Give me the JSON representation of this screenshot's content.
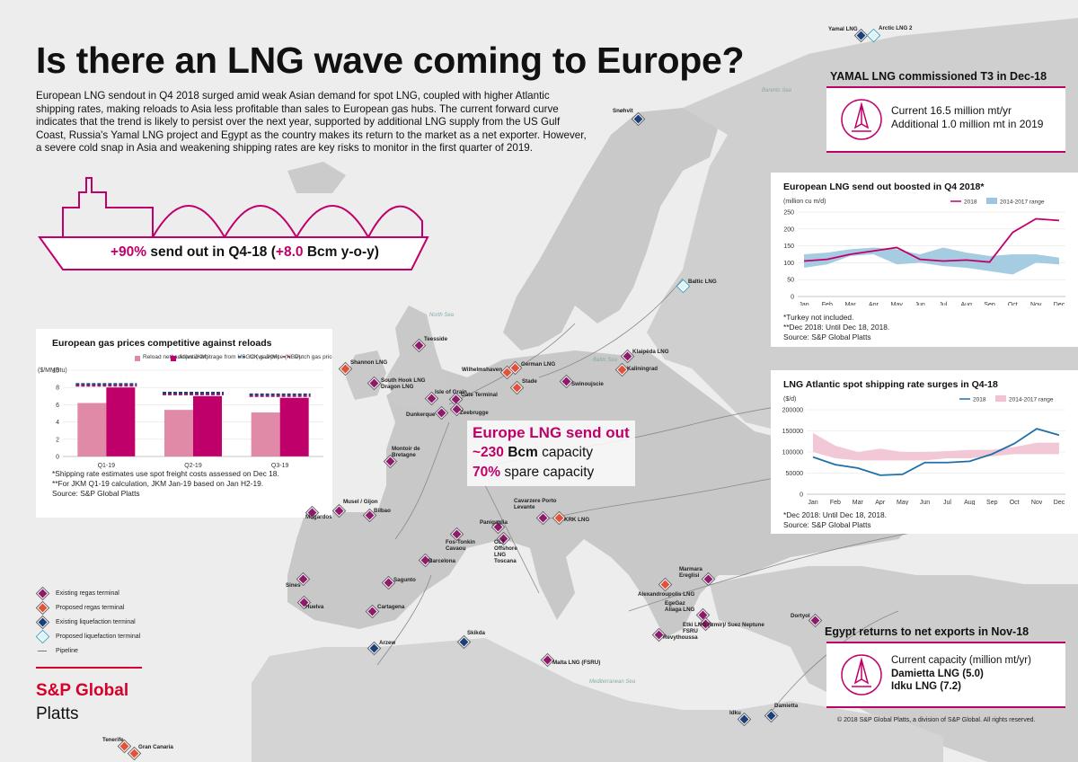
{
  "title": "Is there an LNG wave coming to Europe?",
  "intro": "European LNG sendout in Q4 2018 surged amid weak Asian demand for spot LNG, coupled with higher Atlantic shipping rates, making reloads to Asia less profitable than sales to European gas hubs. The current forward curve indicates that the trend is likely to persist over the next year, supported by additional LNG supply from the US Gulf Coast, Russia's Yamal LNG project and Egypt as the country makes its return to the market as a net exporter. However, a severe cold snap in Asia and weakening shipping rates are key risks to monitor in the first quarter of 2019.",
  "ship": {
    "pct": "+90%",
    "mid": " send out in Q4-18 (",
    "bcm": "+8.0",
    "end": " Bcm y-o-y)"
  },
  "center": {
    "title": "Europe LNG send out",
    "cap_value": "~230",
    "cap_unit": " Bcm",
    "cap_text": " capacity",
    "spare_value": "70%",
    "spare_text": " spare capacity"
  },
  "yamal": {
    "title": "YAMAL LNG commissioned T3 in Dec-18",
    "line1": "Current 16.5 million mt/yr",
    "line2": "Additional 1.0 million mt in 2019"
  },
  "egypt": {
    "title": "Egypt returns to net exports in Nov-18",
    "line1": "Current capacity (million mt/yr)",
    "line2": "Damietta LNG (5.0)",
    "line3": "Idku LNG (7.2)"
  },
  "chart1_notes": {
    "n1": "*Shipping rate estimates use spot freight costs assessed on Dec 18.",
    "n2": "**For JKM Q1-19 calculation, JKM Jan-19 based on Jan H2-19.",
    "n3": "Source: S&P Global Platts"
  },
  "chart2_notes": {
    "n1": "*Turkey not included.",
    "n2": "**Dec 2018: Until Dec 18, 2018.",
    "n3": "Source: S&P Global Platts"
  },
  "chart3_notes": {
    "n1": "*Dec 2018: Until Dec 18, 2018.",
    "n2": "Source: S&P Global Platts"
  },
  "legend": {
    "existing_regas": "Existing regas terminal",
    "proposed_regas": "Proposed regas terminal",
    "existing_liq": "Existing liquefaction terminal",
    "proposed_liq": "Proposed liquefaction terminal",
    "pipeline": "Pipeline"
  },
  "brand": {
    "line1": "S&P Global",
    "line2": "Platts"
  },
  "copyright": "© 2018 S&P Global Platts, a division of S&P Global. All rights reserved.",
  "seas": {
    "barents": "Barents Sea",
    "north": "North Sea",
    "baltic": "Baltic Sea",
    "med": "Mediterranean Sea"
  },
  "terminals": [
    {
      "name": "Yamal LNG",
      "type": "el"
    },
    {
      "name": "Arctic LNG 2",
      "type": "pl"
    },
    {
      "name": "Snøhvit",
      "type": "el"
    },
    {
      "name": "Baltic LNG",
      "type": "pl"
    },
    {
      "name": "Teesside",
      "type": "er"
    },
    {
      "name": "Shannon LNG",
      "type": "pr"
    },
    {
      "name": "South Hook LNG Dragon LNG",
      "type": "er"
    },
    {
      "name": "Isle of Grain",
      "type": "er"
    },
    {
      "name": "Gate Terminal",
      "type": "er"
    },
    {
      "name": "Zeebrugge",
      "type": "er"
    },
    {
      "name": "Dunkerque",
      "type": "er"
    },
    {
      "name": "Wilhelmshaven",
      "type": "pr"
    },
    {
      "name": "German LNG",
      "type": "pr"
    },
    {
      "name": "Stade",
      "type": "pr"
    },
    {
      "name": "Swinoujscie",
      "type": "er"
    },
    {
      "name": "Klaipėda LNG",
      "type": "er"
    },
    {
      "name": "Kaliningrad",
      "type": "pr"
    },
    {
      "name": "Montoir de Bretagne",
      "type": "er"
    },
    {
      "name": "Musel / Gijon",
      "type": "er"
    },
    {
      "name": "Mugardos",
      "type": "er"
    },
    {
      "name": "Bilbao",
      "type": "er"
    },
    {
      "name": "Fos-Tonkin Cavaou",
      "type": "er"
    },
    {
      "name": "Panigaglia",
      "type": "er"
    },
    {
      "name": "Cavarzere Porto Levante",
      "type": "er"
    },
    {
      "name": "KRK LNG",
      "type": "pr"
    },
    {
      "name": "OLT Offshore LNG Toscana",
      "type": "er"
    },
    {
      "name": "Barcelona",
      "type": "er"
    },
    {
      "name": "Sagunto",
      "type": "er"
    },
    {
      "name": "Sines",
      "type": "er"
    },
    {
      "name": "Huelva",
      "type": "er"
    },
    {
      "name": "Cartagena",
      "type": "er"
    },
    {
      "name": "Arzew",
      "type": "el"
    },
    {
      "name": "Skikda",
      "type": "el"
    },
    {
      "name": "Malta LNG (FSRU)",
      "type": "er"
    },
    {
      "name": "Marmara Ereglisi",
      "type": "er"
    },
    {
      "name": "Alexandroupolis LNG",
      "type": "pr"
    },
    {
      "name": "EgeGaz Aliaga LNG",
      "type": "er"
    },
    {
      "name": "Etki LNG (Izmir)/ Suez Neptune FSRU",
      "type": "er"
    },
    {
      "name": "Revythoussa",
      "type": "er"
    },
    {
      "name": "Dortyol",
      "type": "er"
    },
    {
      "name": "Damietta",
      "type": "el"
    },
    {
      "name": "Idku",
      "type": "el"
    },
    {
      "name": "Tenerife",
      "type": "pr"
    },
    {
      "name": "Gran Canaria",
      "type": "pr"
    }
  ],
  "chart_data": [
    {
      "type": "bar",
      "title": "European gas prices competitive against reloads",
      "ylabel": "($/MMBtu)",
      "ylim": [
        0,
        10
      ],
      "yticks": [
        0,
        2,
        4,
        6,
        8,
        10
      ],
      "categories": [
        "Q1-19",
        "Q2-19",
        "Q3-19"
      ],
      "series": [
        {
          "name": "Reload netback (vs JKM)",
          "kind": "bar",
          "color": "#e08aa8",
          "values": [
            6.2,
            5.4,
            5.1
          ]
        },
        {
          "name": "Atlantic arbitrage from USGC (vs JKM)",
          "kind": "bar",
          "color": "#c0006a",
          "values": [
            8.0,
            7.0,
            6.8
          ]
        },
        {
          "name": "UK gas price (NBP)",
          "kind": "dash",
          "color": "#1c3f7a",
          "values": [
            8.4,
            7.4,
            7.2
          ]
        },
        {
          "name": "Dutch gas price (TTF)",
          "kind": "dash",
          "color": "#8e1a6b",
          "values": [
            8.2,
            7.2,
            7.0
          ]
        }
      ]
    },
    {
      "type": "line",
      "title": "European LNG send out boosted in Q4 2018*",
      "ylabel": "(million cu m/d)",
      "ylim": [
        0,
        250
      ],
      "yticks": [
        0,
        50,
        100,
        150,
        200,
        250
      ],
      "categories": [
        "Jan",
        "Feb",
        "Mar",
        "Apr",
        "May",
        "Jun",
        "Jul",
        "Aug",
        "Sep",
        "Oct",
        "Nov",
        "Dec"
      ],
      "series": [
        {
          "name": "2018",
          "kind": "line",
          "color": "#c0006a",
          "values": [
            105,
            110,
            125,
            135,
            145,
            110,
            105,
            108,
            102,
            190,
            230,
            225
          ]
        },
        {
          "name": "2014-2017 range",
          "kind": "range",
          "color": "#9cc6df",
          "low": [
            85,
            95,
            120,
            125,
            95,
            100,
            90,
            85,
            75,
            65,
            100,
            95
          ],
          "high": [
            125,
            130,
            140,
            145,
            140,
            125,
            145,
            130,
            120,
            125,
            125,
            115
          ]
        }
      ]
    },
    {
      "type": "line",
      "title": "LNG Atlantic spot shipping rate surges in Q4-18",
      "ylabel": "($/d)",
      "ylim": [
        0,
        200000
      ],
      "yticks": [
        0,
        50000,
        100000,
        150000,
        200000
      ],
      "categories": [
        "Jan",
        "Feb",
        "Mar",
        "Apr",
        "May",
        "Jun",
        "Jul",
        "Aug",
        "Sep",
        "Oct",
        "Nov",
        "Dec"
      ],
      "series": [
        {
          "name": "2018",
          "kind": "line",
          "color": "#1f6fa8",
          "values": [
            88000,
            70000,
            62000,
            45000,
            47000,
            75000,
            75000,
            78000,
            95000,
            120000,
            155000,
            140000
          ]
        },
        {
          "name": "2014-2017 range",
          "kind": "range",
          "color": "#f2c2d2",
          "low": [
            100000,
            85000,
            80000,
            80000,
            80000,
            80000,
            85000,
            85000,
            90000,
            95000,
            95000,
            95000
          ],
          "high": [
            145000,
            115000,
            100000,
            108000,
            100000,
            100000,
            102000,
            105000,
            105000,
            112000,
            122000,
            122000
          ]
        }
      ]
    }
  ]
}
